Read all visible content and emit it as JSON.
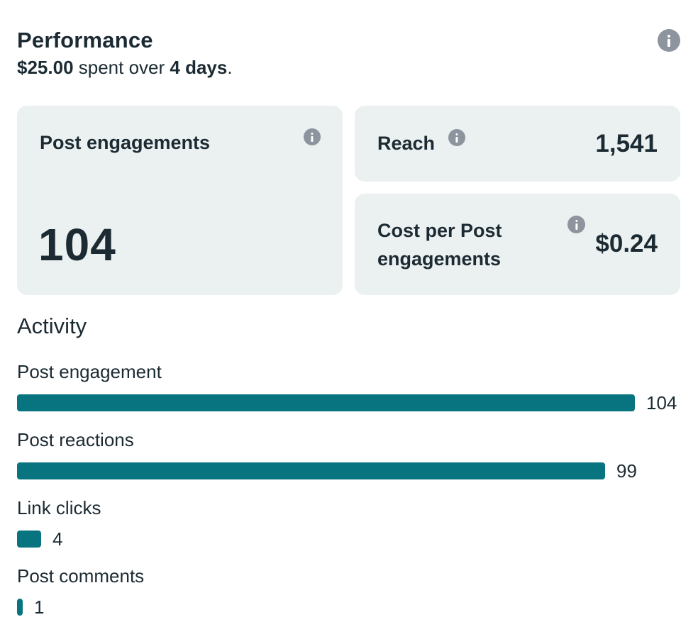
{
  "header": {
    "title": "Performance",
    "amount": "$25.00",
    "spent_text": " spent over ",
    "duration": "4 days",
    "period": "."
  },
  "cards": {
    "engagements": {
      "label": "Post engagements",
      "value": "104"
    },
    "reach": {
      "label": "Reach",
      "value": "1,541"
    },
    "cost_per": {
      "label": "Cost per Post engagements",
      "value": "$0.24"
    }
  },
  "activity": {
    "title": "Activity",
    "bar_color": "#087480",
    "max": 104,
    "items": [
      {
        "label": "Post engagement",
        "value": "104",
        "amount": 104
      },
      {
        "label": "Post reactions",
        "value": "99",
        "amount": 99
      },
      {
        "label": "Link clicks",
        "value": "4",
        "amount": 4
      },
      {
        "label": "Post comments",
        "value": "1",
        "amount": 1
      }
    ]
  },
  "icons": {
    "info": "info-icon"
  }
}
